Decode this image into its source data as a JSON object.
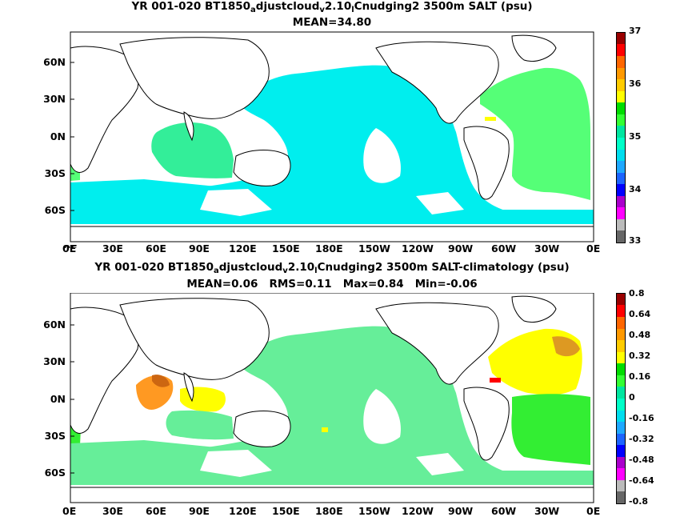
{
  "panels": [
    {
      "id": "salt",
      "title": {
        "prefix": "YR 001-020 BT1850",
        "sub1": "a",
        "mid1": "djustcloud",
        "sub2": "v",
        "mid2": "2.10",
        "sub3": "l",
        "suffix": "Cnudging2 3500m SALT (psu)"
      },
      "stats": "MEAN=34.80",
      "lat_ticks": [
        "60N",
        "30N",
        "0N",
        "30S",
        "60S"
      ],
      "lon_ticks": [
        "0E",
        "30E",
        "60E",
        "90E",
        "120E",
        "150E",
        "180E",
        "150W",
        "120W",
        "90W",
        "60W",
        "30W",
        "0E"
      ],
      "colorbar": {
        "labels": [
          "33",
          "34",
          "35",
          "36",
          "37"
        ],
        "colors": [
          "#666666",
          "#bbbbbb",
          "#ff00ff",
          "#aa00cc",
          "#0000ff",
          "#1c64ff",
          "#1ea8ff",
          "#00ddee",
          "#00ffc8",
          "#00e6a0",
          "#33ff33",
          "#00dd00",
          "#ffff00",
          "#ffcc00",
          "#ff9900",
          "#ff6600",
          "#ff0000",
          "#990000"
        ]
      }
    },
    {
      "id": "diff",
      "title": {
        "prefix": "YR 001-020 BT1850",
        "sub1": "a",
        "mid1": "djustcloud",
        "sub2": "v",
        "mid2": "2.10",
        "sub3": "l",
        "suffix": "Cnudging2 3500m SALT-climatology (psu)"
      },
      "stats": "MEAN=0.06   RMS=0.11   Max=0.84   Min=-0.06",
      "lat_ticks": [
        "60N",
        "30N",
        "0N",
        "30S",
        "60S"
      ],
      "lon_ticks": [
        "0E",
        "30E",
        "60E",
        "90E",
        "120E",
        "150E",
        "180E",
        "150W",
        "120W",
        "90W",
        "60W",
        "30W",
        "0E"
      ],
      "colorbar": {
        "labels": [
          "0.8",
          "0.64",
          "0.48",
          "0.32",
          "0.16",
          "0",
          "-0.16",
          "-0.32",
          "-0.48",
          "-0.64",
          "-0.8"
        ],
        "colors": [
          "#666666",
          "#bbbbbb",
          "#ff00ff",
          "#aa00cc",
          "#0000ff",
          "#1c64ff",
          "#1ea8ff",
          "#00ddee",
          "#00ffc8",
          "#00e6a0",
          "#33ff33",
          "#00dd00",
          "#ffff00",
          "#ffcc00",
          "#ff9900",
          "#ff6600",
          "#ff0000",
          "#990000"
        ]
      }
    }
  ]
}
